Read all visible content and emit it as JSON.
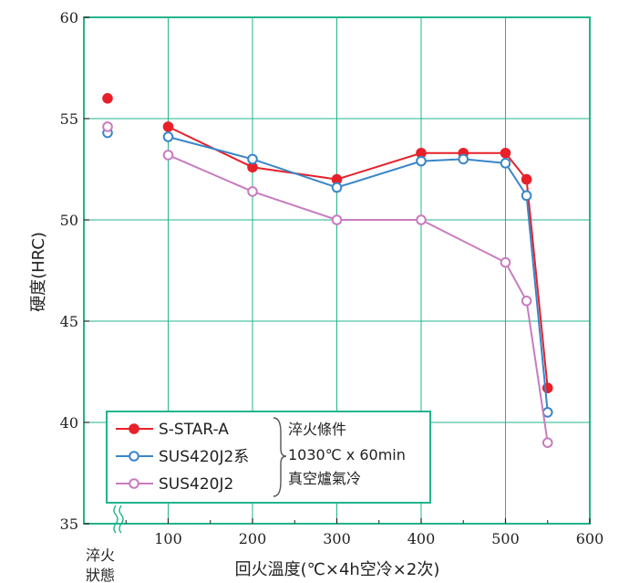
{
  "chart_data": {
    "type": "line",
    "xlabel": "回火溫度(℃×4h空冷×2次)",
    "ylabel": "硬度(HRC)",
    "x_ticks": [
      "100",
      "200",
      "300",
      "400",
      "500",
      "600"
    ],
    "y_ticks": [
      "35",
      "40",
      "45",
      "50",
      "55",
      "60"
    ],
    "xlim": [
      0,
      600
    ],
    "ylim": [
      35,
      60
    ],
    "grid": true,
    "quenched_label_lines": [
      "淬火",
      "狀態"
    ],
    "legend_placement": "bottom-left",
    "quench_condition": {
      "title": "淬火條件",
      "lines": [
        "1030℃ x 60min",
        "真空爐氣冷"
      ]
    },
    "colors": {
      "grid": "#22b48c",
      "frame": "#22b48c",
      "legend_border": "#22b48c"
    },
    "series": [
      {
        "name": "S-STAR-A",
        "color": "#e8202a",
        "marker": "filled",
        "as_quenched": 56.0,
        "x": [
          100,
          200,
          300,
          400,
          450,
          500,
          525,
          550
        ],
        "y": [
          54.6,
          52.6,
          52.0,
          53.3,
          53.3,
          53.3,
          52.0,
          41.7
        ]
      },
      {
        "name": "SUS420J2系",
        "color": "#3a86c8",
        "marker": "open",
        "as_quenched": 54.3,
        "x": [
          100,
          200,
          300,
          400,
          450,
          500,
          525,
          550
        ],
        "y": [
          54.1,
          53.0,
          51.6,
          52.9,
          53.0,
          52.8,
          51.2,
          40.5
        ]
      },
      {
        "name": "SUS420J2",
        "color": "#c87cc0",
        "marker": "open",
        "as_quenched": 54.6,
        "x": [
          100,
          200,
          300,
          400,
          500,
          525,
          550
        ],
        "y": [
          53.2,
          51.4,
          50.0,
          50.0,
          47.9,
          46.0,
          39.0
        ]
      }
    ]
  }
}
